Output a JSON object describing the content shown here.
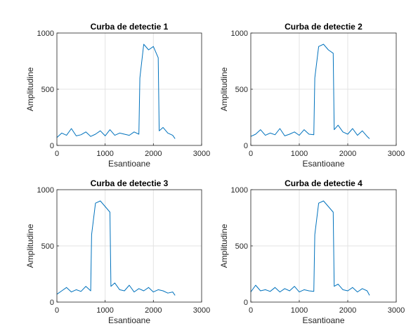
{
  "colors": {
    "series": "#0072bd",
    "grid": "#e3e3e3",
    "axis": "#262626",
    "background": "#ffffff"
  },
  "chart_data": [
    {
      "type": "line",
      "title": "Curba de detectie 1",
      "xlabel": "Esantioane",
      "ylabel": "Amplitudine",
      "xlim": [
        0,
        3000
      ],
      "ylim": [
        0,
        1000
      ],
      "xticks": [
        0,
        1000,
        2000,
        3000
      ],
      "yticks": [
        0,
        500,
        1000
      ],
      "grid": true,
      "x": [
        0,
        100,
        200,
        300,
        400,
        500,
        600,
        700,
        800,
        900,
        1000,
        1100,
        1200,
        1300,
        1400,
        1500,
        1600,
        1700,
        1720,
        1800,
        1900,
        2000,
        2100,
        2120,
        2200,
        2300,
        2400,
        2450
      ],
      "series": [
        {
          "values": [
            70,
            110,
            90,
            150,
            85,
            95,
            120,
            80,
            100,
            130,
            85,
            140,
            90,
            110,
            100,
            90,
            120,
            100,
            600,
            900,
            850,
            880,
            780,
            130,
            160,
            110,
            90,
            60
          ]
        }
      ]
    },
    {
      "type": "line",
      "title": "Curba de detectie 2",
      "xlabel": "Esantioane",
      "ylabel": "Amplitudine",
      "xlim": [
        0,
        3000
      ],
      "ylim": [
        0,
        1000
      ],
      "xticks": [
        0,
        1000,
        2000,
        3000
      ],
      "yticks": [
        0,
        500,
        1000
      ],
      "grid": true,
      "x": [
        0,
        100,
        200,
        300,
        400,
        500,
        600,
        700,
        800,
        900,
        1000,
        1100,
        1200,
        1300,
        1320,
        1400,
        1500,
        1600,
        1700,
        1720,
        1800,
        1900,
        2000,
        2100,
        2200,
        2300,
        2400,
        2450
      ],
      "series": [
        {
          "values": [
            80,
            100,
            140,
            90,
            110,
            95,
            150,
            85,
            100,
            120,
            90,
            140,
            100,
            95,
            600,
            880,
            900,
            850,
            820,
            140,
            180,
            120,
            100,
            150,
            90,
            130,
            80,
            60
          ]
        }
      ]
    },
    {
      "type": "line",
      "title": "Curba de detectie 3",
      "xlabel": "Esantioane",
      "ylabel": "Amplitudine",
      "xlim": [
        0,
        3000
      ],
      "ylim": [
        0,
        1000
      ],
      "xticks": [
        0,
        1000,
        2000,
        3000
      ],
      "yticks": [
        0,
        500,
        1000
      ],
      "grid": true,
      "x": [
        0,
        100,
        200,
        300,
        400,
        500,
        600,
        700,
        720,
        800,
        900,
        1000,
        1100,
        1120,
        1200,
        1300,
        1400,
        1500,
        1600,
        1700,
        1800,
        1900,
        2000,
        2100,
        2200,
        2300,
        2400,
        2450
      ],
      "series": [
        {
          "values": [
            70,
            100,
            130,
            90,
            110,
            95,
            140,
            100,
            600,
            880,
            900,
            850,
            800,
            140,
            170,
            110,
            100,
            150,
            90,
            120,
            100,
            130,
            90,
            110,
            100,
            80,
            90,
            60
          ]
        }
      ]
    },
    {
      "type": "line",
      "title": "Curba de detectie 4",
      "xlabel": "Esantioane",
      "ylabel": "Amplitudine",
      "xlim": [
        0,
        3000
      ],
      "ylim": [
        0,
        1000
      ],
      "xticks": [
        0,
        1000,
        2000,
        3000
      ],
      "yticks": [
        0,
        500,
        1000
      ],
      "grid": true,
      "x": [
        0,
        100,
        200,
        300,
        400,
        500,
        600,
        700,
        800,
        900,
        1000,
        1100,
        1200,
        1300,
        1320,
        1400,
        1500,
        1600,
        1700,
        1720,
        1800,
        1900,
        2000,
        2100,
        2200,
        2300,
        2400,
        2450
      ],
      "series": [
        {
          "values": [
            90,
            150,
            100,
            110,
            95,
            130,
            90,
            120,
            100,
            140,
            90,
            110,
            100,
            95,
            600,
            880,
            900,
            850,
            800,
            140,
            160,
            110,
            100,
            130,
            90,
            120,
            100,
            60
          ]
        }
      ]
    }
  ]
}
